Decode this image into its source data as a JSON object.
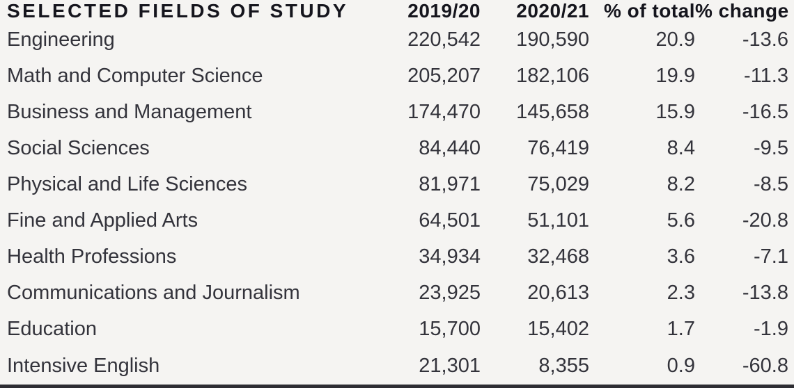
{
  "colors": {
    "background": "#f5f4f2",
    "header_text": "#15151d",
    "body_text": "#33333b",
    "bottom_rule": "#2e2e33"
  },
  "table": {
    "columns": [
      {
        "label": "SELECTED FIELDS OF STUDY",
        "align": "left"
      },
      {
        "label": "2019/20",
        "align": "right"
      },
      {
        "label": "2020/21",
        "align": "right"
      },
      {
        "label": "% of total",
        "align": "right"
      },
      {
        "label": "% change",
        "align": "right"
      }
    ],
    "rows": [
      {
        "field": "Engineering",
        "y2019_20": "220,542",
        "y2020_21": "190,590",
        "pct_total": "20.9",
        "pct_change": "-13.6"
      },
      {
        "field": "Math and Computer Science",
        "y2019_20": "205,207",
        "y2020_21": "182,106",
        "pct_total": "19.9",
        "pct_change": "-11.3"
      },
      {
        "field": "Business and Management",
        "y2019_20": "174,470",
        "y2020_21": "145,658",
        "pct_total": "15.9",
        "pct_change": "-16.5"
      },
      {
        "field": "Social Sciences",
        "y2019_20": "84,440",
        "y2020_21": "76,419",
        "pct_total": "8.4",
        "pct_change": "-9.5"
      },
      {
        "field": "Physical and Life Sciences",
        "y2019_20": "81,971",
        "y2020_21": "75,029",
        "pct_total": "8.2",
        "pct_change": "-8.5"
      },
      {
        "field": "Fine and Applied Arts",
        "y2019_20": "64,501",
        "y2020_21": "51,101",
        "pct_total": "5.6",
        "pct_change": "-20.8"
      },
      {
        "field": "Health Professions",
        "y2019_20": "34,934",
        "y2020_21": "32,468",
        "pct_total": "3.6",
        "pct_change": "-7.1"
      },
      {
        "field": "Communications and Journalism",
        "y2019_20": "23,925",
        "y2020_21": "20,613",
        "pct_total": "2.3",
        "pct_change": "-13.8"
      },
      {
        "field": "Education",
        "y2019_20": "15,700",
        "y2020_21": "15,402",
        "pct_total": "1.7",
        "pct_change": "-1.9"
      },
      {
        "field": "Intensive English",
        "y2019_20": "21,301",
        "y2020_21": "8,355",
        "pct_total": "0.9",
        "pct_change": "-60.8"
      }
    ]
  },
  "chart_data": {
    "type": "table",
    "title": "SELECTED FIELDS OF STUDY",
    "categories": [
      "Engineering",
      "Math and Computer Science",
      "Business and Management",
      "Social Sciences",
      "Physical and Life Sciences",
      "Fine and Applied Arts",
      "Health Professions",
      "Communications and Journalism",
      "Education",
      "Intensive English"
    ],
    "series": [
      {
        "name": "2019/20",
        "values": [
          220542,
          205207,
          174470,
          84440,
          81971,
          64501,
          34934,
          23925,
          15700,
          21301
        ]
      },
      {
        "name": "2020/21",
        "values": [
          190590,
          182106,
          145658,
          76419,
          75029,
          51101,
          32468,
          20613,
          15402,
          8355
        ]
      },
      {
        "name": "% of total",
        "values": [
          20.9,
          19.9,
          15.9,
          8.4,
          8.2,
          5.6,
          3.6,
          2.3,
          1.7,
          0.9
        ]
      },
      {
        "name": "% change",
        "values": [
          -13.6,
          -11.3,
          -16.5,
          -9.5,
          -8.5,
          -20.8,
          -7.1,
          -13.8,
          -1.9,
          -60.8
        ]
      }
    ]
  }
}
